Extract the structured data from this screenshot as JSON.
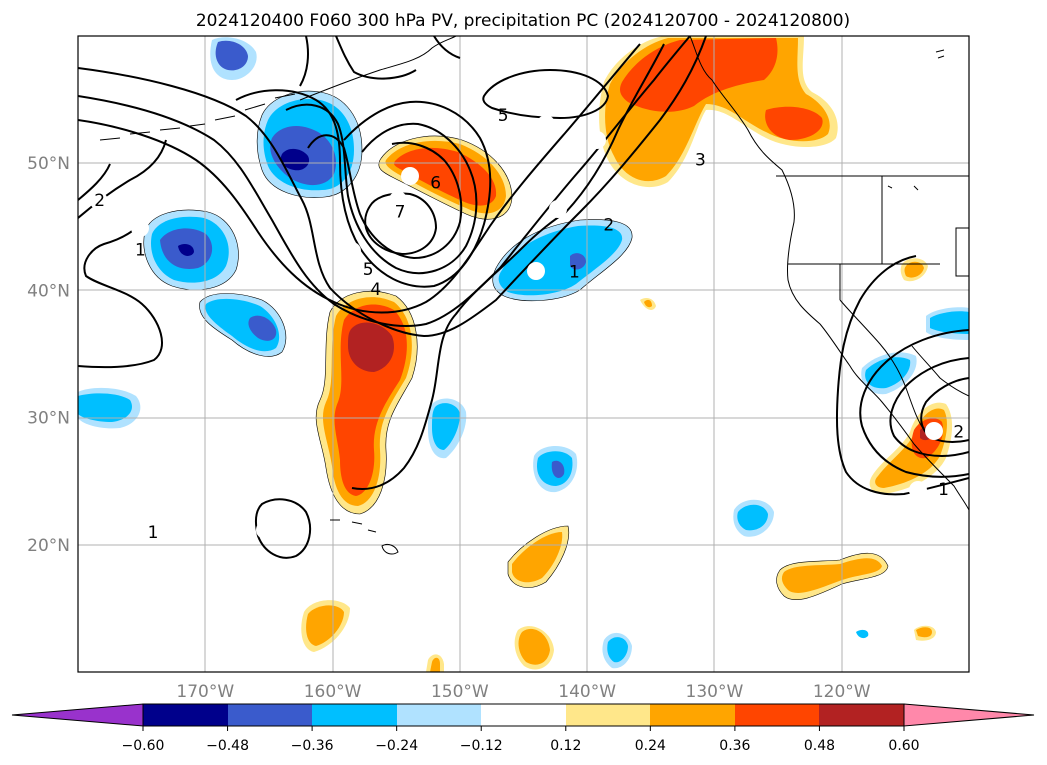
{
  "chart_data": {
    "type": "map-contour",
    "title": "2024120400 F060 300 hPa PV, precipitation PC (2024120700 - 2024120800)",
    "lon_range": [
      -180,
      -110
    ],
    "lat_range": [
      10,
      60
    ],
    "lon_ticks": [
      {
        "value": -170,
        "label": "170°W"
      },
      {
        "value": -160,
        "label": "160°W"
      },
      {
        "value": -150,
        "label": "150°W"
      },
      {
        "value": -140,
        "label": "140°W"
      },
      {
        "value": -130,
        "label": "130°W"
      },
      {
        "value": -120,
        "label": "120°W"
      }
    ],
    "lat_ticks": [
      {
        "value": 20,
        "label": "20°N"
      },
      {
        "value": 30,
        "label": "30°N"
      },
      {
        "value": 40,
        "label": "40°N"
      },
      {
        "value": 50,
        "label": "50°N"
      }
    ],
    "grid": true,
    "colorbar": {
      "orientation": "horizontal",
      "extend": "both",
      "levels": [
        -0.6,
        -0.48,
        -0.36,
        -0.24,
        -0.12,
        0.12,
        0.24,
        0.36,
        0.48,
        0.6
      ],
      "tick_labels": [
        "−0.60",
        "−0.48",
        "−0.36",
        "−0.24",
        "−0.12",
        "0.12",
        "0.24",
        "0.36",
        "0.48",
        "0.60"
      ],
      "colors": [
        "#9932cc",
        "#00008b",
        "#3a5bcc",
        "#00bfff",
        "#b0e2ff",
        "#ffffff",
        "#ffe78a",
        "#ffa500",
        "#ff4500",
        "#b22222",
        "#ff88aa"
      ]
    },
    "pv_contour_labels": [
      {
        "text": "2",
        "lon": -178.3,
        "lat": 47.1
      },
      {
        "text": "1",
        "lon": -175.1,
        "lat": 43.2
      },
      {
        "text": "5",
        "lon": -146.6,
        "lat": 53.8
      },
      {
        "text": "3",
        "lon": -131.1,
        "lat": 50.3
      },
      {
        "text": "6",
        "lon": -151.9,
        "lat": 48.5
      },
      {
        "text": "7",
        "lon": -154.7,
        "lat": 46.2
      },
      {
        "text": "5",
        "lon": -157.2,
        "lat": 41.7
      },
      {
        "text": "4",
        "lon": -156.6,
        "lat": 40.1
      },
      {
        "text": "2",
        "lon": -138.3,
        "lat": 45.2
      },
      {
        "text": "1",
        "lon": -141.0,
        "lat": 41.5
      },
      {
        "text": "1",
        "lon": -174.1,
        "lat": 21.0
      },
      {
        "text": "1",
        "lon": -112.0,
        "lat": 24.4
      },
      {
        "text": "2",
        "lon": -110.8,
        "lat": 28.9
      }
    ]
  }
}
